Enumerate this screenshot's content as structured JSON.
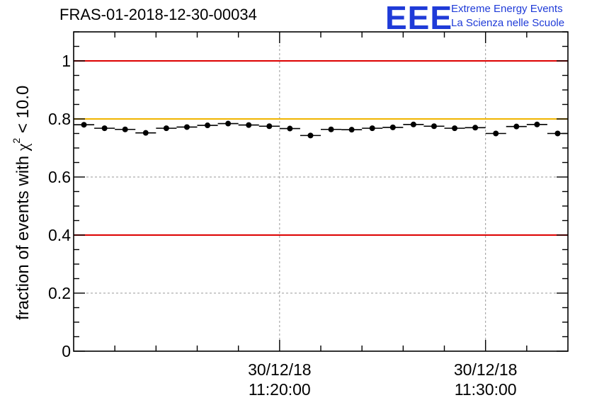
{
  "title": "FRAS-01-2018-12-30-00034",
  "logo": {
    "mark": "EEE",
    "line1": "Extreme Energy Events",
    "line2": "La Scienza nelle Scuole",
    "color": "#1f3bd8"
  },
  "chart_data": {
    "type": "scatter",
    "title": "FRAS-01-2018-12-30-00034",
    "ylabel_prefix": "fraction of events with ",
    "ylabel_symbol": "χ",
    "ylabel_exp": "2",
    "ylabel_suffix": " < 10.0",
    "xlabel": "",
    "ylim": [
      0,
      1.1
    ],
    "yticks": [
      0,
      0.2,
      0.4,
      0.6,
      0.8,
      1
    ],
    "ytick_labels": [
      "0",
      "0.2",
      "0.4",
      "0.6",
      "0.8",
      "1"
    ],
    "xlim": [
      0,
      24
    ],
    "xticks_major": [
      {
        "x": 10,
        "label_date": "30/12/18",
        "label_time": "11:20:00"
      },
      {
        "x": 20,
        "label_date": "30/12/18",
        "label_time": "11:30:00"
      }
    ],
    "x_minor_step": 2,
    "grid": true,
    "reference_lines": [
      {
        "y": 1.0,
        "color": "#dd0000"
      },
      {
        "y": 0.8,
        "color": "#f0b400"
      },
      {
        "y": 0.4,
        "color": "#dd0000"
      }
    ],
    "series": [
      {
        "name": "fraction",
        "bin_width": 1,
        "x": [
          0.5,
          1.5,
          2.5,
          3.5,
          4.5,
          5.5,
          6.5,
          7.5,
          8.5,
          9.5,
          10.5,
          11.5,
          12.5,
          13.5,
          14.5,
          15.5,
          16.5,
          17.5,
          18.5,
          19.5,
          20.5,
          21.5,
          22.5,
          23.5
        ],
        "values": [
          0.78,
          0.768,
          0.764,
          0.752,
          0.768,
          0.772,
          0.778,
          0.784,
          0.779,
          0.775,
          0.767,
          0.743,
          0.764,
          0.763,
          0.768,
          0.771,
          0.781,
          0.775,
          0.768,
          0.77,
          0.75,
          0.774,
          0.781,
          0.75
        ]
      }
    ]
  }
}
